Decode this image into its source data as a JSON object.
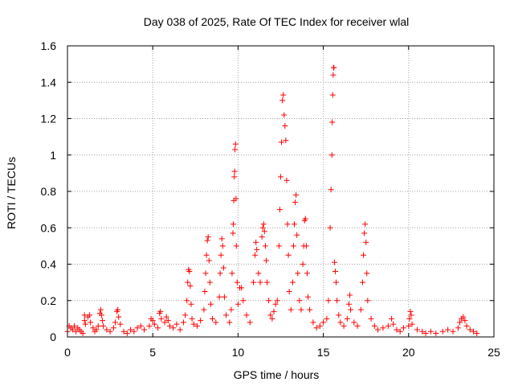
{
  "chart_data": {
    "type": "scatter",
    "title": "Day 038 of 2025, Rate Of TEC Index for receiver wlal",
    "xlabel": "GPS time / hours",
    "ylabel": "ROTI / TECUs",
    "xlim": [
      0,
      25
    ],
    "ylim": [
      0,
      1.6
    ],
    "xticks": [
      "0",
      "5",
      "10",
      "15",
      "20",
      "25"
    ],
    "yticks": [
      "0",
      "0.2",
      "0.4",
      "0.6",
      "0.8",
      "1",
      "1.2",
      "1.4",
      "1.6"
    ],
    "grid": true,
    "marker": "+",
    "colors": {
      "series": "#ff0000",
      "grid": "#a0a0a0",
      "axes": "#000000"
    },
    "series": [
      {
        "points": [
          [
            0.0,
            0.03
          ],
          [
            0.1,
            0.06
          ],
          [
            0.2,
            0.05
          ],
          [
            0.3,
            0.04
          ],
          [
            0.4,
            0.06
          ],
          [
            0.5,
            0.03
          ],
          [
            0.6,
            0.05
          ],
          [
            0.7,
            0.04
          ],
          [
            0.8,
            0.03
          ],
          [
            0.9,
            0.02
          ],
          [
            1.0,
            0.12
          ],
          [
            1.0,
            0.09
          ],
          [
            1.05,
            0.07
          ],
          [
            1.2,
            0.11
          ],
          [
            1.3,
            0.12
          ],
          [
            1.35,
            0.08
          ],
          [
            1.5,
            0.05
          ],
          [
            1.6,
            0.03
          ],
          [
            1.7,
            0.04
          ],
          [
            1.8,
            0.06
          ],
          [
            1.9,
            0.13
          ],
          [
            1.95,
            0.15
          ],
          [
            2.0,
            0.12
          ],
          [
            2.05,
            0.09
          ],
          [
            2.1,
            0.06
          ],
          [
            2.3,
            0.04
          ],
          [
            2.5,
            0.03
          ],
          [
            2.7,
            0.05
          ],
          [
            2.8,
            0.08
          ],
          [
            2.9,
            0.14
          ],
          [
            2.95,
            0.15
          ],
          [
            3.0,
            0.11
          ],
          [
            3.1,
            0.07
          ],
          [
            3.3,
            0.03
          ],
          [
            3.5,
            0.02
          ],
          [
            3.7,
            0.04
          ],
          [
            3.9,
            0.03
          ],
          [
            4.1,
            0.05
          ],
          [
            4.3,
            0.06
          ],
          [
            4.5,
            0.04
          ],
          [
            4.8,
            0.06
          ],
          [
            4.9,
            0.1
          ],
          [
            5.0,
            0.09
          ],
          [
            5.1,
            0.07
          ],
          [
            5.3,
            0.05
          ],
          [
            5.4,
            0.13
          ],
          [
            5.45,
            0.14
          ],
          [
            5.5,
            0.1
          ],
          [
            5.7,
            0.08
          ],
          [
            5.8,
            0.11
          ],
          [
            5.9,
            0.09
          ],
          [
            6.0,
            0.06
          ],
          [
            6.2,
            0.05
          ],
          [
            6.4,
            0.07
          ],
          [
            6.6,
            0.04
          ],
          [
            6.8,
            0.08
          ],
          [
            6.9,
            0.12
          ],
          [
            7.0,
            0.2
          ],
          [
            7.05,
            0.3
          ],
          [
            7.1,
            0.37
          ],
          [
            7.15,
            0.36
          ],
          [
            7.2,
            0.28
          ],
          [
            7.25,
            0.18
          ],
          [
            7.3,
            0.1
          ],
          [
            7.4,
            0.07
          ],
          [
            7.6,
            0.06
          ],
          [
            7.8,
            0.09
          ],
          [
            8.0,
            0.15
          ],
          [
            8.05,
            0.25
          ],
          [
            8.1,
            0.35
          ],
          [
            8.15,
            0.45
          ],
          [
            8.2,
            0.53
          ],
          [
            8.25,
            0.55
          ],
          [
            8.3,
            0.42
          ],
          [
            8.35,
            0.3
          ],
          [
            8.4,
            0.18
          ],
          [
            8.5,
            0.1
          ],
          [
            8.7,
            0.08
          ],
          [
            8.9,
            0.22
          ],
          [
            8.95,
            0.35
          ],
          [
            9.0,
            0.45
          ],
          [
            9.05,
            0.54
          ],
          [
            9.1,
            0.5
          ],
          [
            9.15,
            0.38
          ],
          [
            9.2,
            0.22
          ],
          [
            9.3,
            0.12
          ],
          [
            9.5,
            0.08
          ],
          [
            9.6,
            0.15
          ],
          [
            9.65,
            0.35
          ],
          [
            9.7,
            0.57
          ],
          [
            9.72,
            0.62
          ],
          [
            9.75,
            0.75
          ],
          [
            9.78,
            0.88
          ],
          [
            9.8,
            0.91
          ],
          [
            9.82,
            1.03
          ],
          [
            9.85,
            1.06
          ],
          [
            9.88,
            0.76
          ],
          [
            9.9,
            0.5
          ],
          [
            9.95,
            0.3
          ],
          [
            10.0,
            0.18
          ],
          [
            10.1,
            0.27
          ],
          [
            10.2,
            0.27
          ],
          [
            10.3,
            0.2
          ],
          [
            10.5,
            0.12
          ],
          [
            10.7,
            0.08
          ],
          [
            10.9,
            0.3
          ],
          [
            11.0,
            0.45
          ],
          [
            11.05,
            0.52
          ],
          [
            11.1,
            0.48
          ],
          [
            11.2,
            0.35
          ],
          [
            11.3,
            0.3
          ],
          [
            11.4,
            0.55
          ],
          [
            11.45,
            0.6
          ],
          [
            11.5,
            0.62
          ],
          [
            11.55,
            0.58
          ],
          [
            11.6,
            0.5
          ],
          [
            11.65,
            0.42
          ],
          [
            11.7,
            0.3
          ],
          [
            11.8,
            0.2
          ],
          [
            11.9,
            0.12
          ],
          [
            12.0,
            0.1
          ],
          [
            12.1,
            0.14
          ],
          [
            12.2,
            0.18
          ],
          [
            12.3,
            0.2
          ],
          [
            12.4,
            0.5
          ],
          [
            12.45,
            0.7
          ],
          [
            12.5,
            0.88
          ],
          [
            12.55,
            1.07
          ],
          [
            12.6,
            1.3
          ],
          [
            12.65,
            1.33
          ],
          [
            12.7,
            1.22
          ],
          [
            12.75,
            1.16
          ],
          [
            12.8,
            1.08
          ],
          [
            12.85,
            0.86
          ],
          [
            12.9,
            0.62
          ],
          [
            12.95,
            0.45
          ],
          [
            13.0,
            0.25
          ],
          [
            13.1,
            0.15
          ],
          [
            13.2,
            0.3
          ],
          [
            13.25,
            0.5
          ],
          [
            13.3,
            0.62
          ],
          [
            13.35,
            0.74
          ],
          [
            13.4,
            0.78
          ],
          [
            13.45,
            0.56
          ],
          [
            13.5,
            0.35
          ],
          [
            13.6,
            0.2
          ],
          [
            13.7,
            0.15
          ],
          [
            13.8,
            0.4
          ],
          [
            13.85,
            0.5
          ],
          [
            13.9,
            0.64
          ],
          [
            13.95,
            0.65
          ],
          [
            14.0,
            0.5
          ],
          [
            14.05,
            0.35
          ],
          [
            14.1,
            0.22
          ],
          [
            14.2,
            0.15
          ],
          [
            14.4,
            0.08
          ],
          [
            14.6,
            0.05
          ],
          [
            14.8,
            0.06
          ],
          [
            15.0,
            0.08
          ],
          [
            15.2,
            0.1
          ],
          [
            15.3,
            0.2
          ],
          [
            15.4,
            0.6
          ],
          [
            15.45,
            0.81
          ],
          [
            15.5,
            1.0
          ],
          [
            15.52,
            1.18
          ],
          [
            15.55,
            1.33
          ],
          [
            15.58,
            1.44
          ],
          [
            15.6,
            1.48
          ],
          [
            15.62,
            1.48
          ],
          [
            15.65,
            0.41
          ],
          [
            15.7,
            0.36
          ],
          [
            15.75,
            0.3
          ],
          [
            15.8,
            0.2
          ],
          [
            15.9,
            0.12
          ],
          [
            16.0,
            0.08
          ],
          [
            16.2,
            0.06
          ],
          [
            16.4,
            0.1
          ],
          [
            16.5,
            0.18
          ],
          [
            16.55,
            0.23
          ],
          [
            16.6,
            0.15
          ],
          [
            16.8,
            0.08
          ],
          [
            17.0,
            0.06
          ],
          [
            17.2,
            0.15
          ],
          [
            17.3,
            0.3
          ],
          [
            17.35,
            0.45
          ],
          [
            17.4,
            0.57
          ],
          [
            17.45,
            0.62
          ],
          [
            17.5,
            0.52
          ],
          [
            17.55,
            0.35
          ],
          [
            17.6,
            0.2
          ],
          [
            17.8,
            0.1
          ],
          [
            18.0,
            0.06
          ],
          [
            18.2,
            0.04
          ],
          [
            18.5,
            0.05
          ],
          [
            18.8,
            0.06
          ],
          [
            19.0,
            0.1
          ],
          [
            19.1,
            0.07
          ],
          [
            19.3,
            0.04
          ],
          [
            19.5,
            0.03
          ],
          [
            19.7,
            0.05
          ],
          [
            20.0,
            0.06
          ],
          [
            20.05,
            0.1
          ],
          [
            20.1,
            0.14
          ],
          [
            20.15,
            0.12
          ],
          [
            20.2,
            0.07
          ],
          [
            20.5,
            0.04
          ],
          [
            20.8,
            0.03
          ],
          [
            21.0,
            0.02
          ],
          [
            21.3,
            0.03
          ],
          [
            21.6,
            0.02
          ],
          [
            22.0,
            0.03
          ],
          [
            22.3,
            0.04
          ],
          [
            22.6,
            0.03
          ],
          [
            22.9,
            0.05
          ],
          [
            23.0,
            0.08
          ],
          [
            23.1,
            0.1
          ],
          [
            23.2,
            0.11
          ],
          [
            23.3,
            0.09
          ],
          [
            23.4,
            0.06
          ],
          [
            23.6,
            0.04
          ],
          [
            23.8,
            0.03
          ],
          [
            24.0,
            0.02
          ]
        ]
      }
    ]
  }
}
